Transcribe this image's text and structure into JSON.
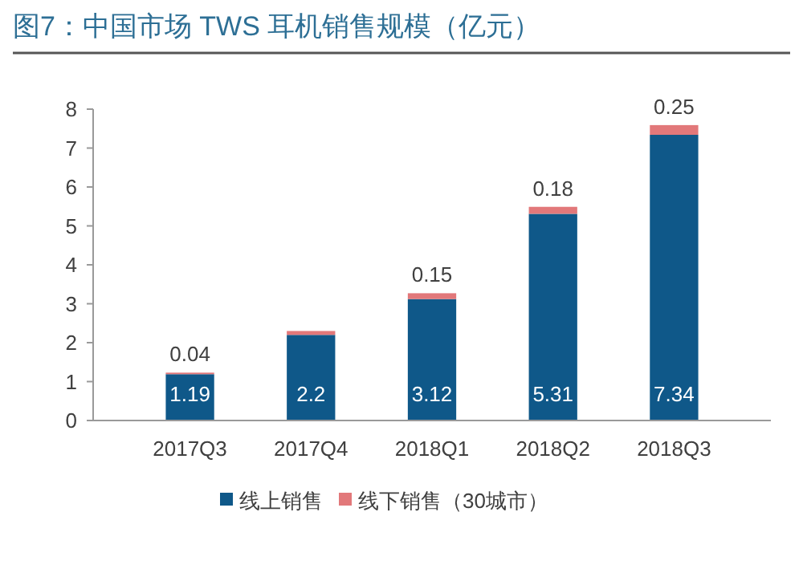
{
  "chart_data": {
    "type": "bar",
    "title": "图7：中国市场 TWS 耳机销售规模（亿元）",
    "categories": [
      "2017Q3",
      "2017Q4",
      "2018Q1",
      "2018Q2",
      "2018Q3"
    ],
    "stacked": true,
    "series": [
      {
        "name": "线上销售",
        "color": "#0f5889",
        "values": [
          1.19,
          2.2,
          3.12,
          5.31,
          7.34
        ],
        "value_labels": [
          "1.19",
          "2.2",
          "3.12",
          "5.31",
          "7.34"
        ]
      },
      {
        "name": "线下销售（30城市）",
        "color": "#e2787a",
        "values": [
          0.04,
          0.1,
          0.15,
          0.18,
          0.25
        ],
        "value_labels": [
          "0.04",
          null,
          "0.15",
          "0.18",
          "0.25"
        ]
      }
    ],
    "ylim": [
      0,
      8
    ],
    "yticks": [
      0,
      1,
      2,
      3,
      4,
      5,
      6,
      7,
      8
    ],
    "grid": false,
    "legend": "bottom"
  }
}
